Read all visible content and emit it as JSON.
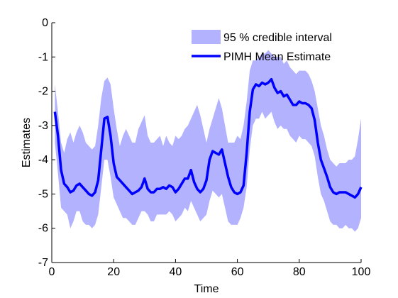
{
  "chart_data": {
    "type": "area",
    "title": "",
    "xlabel": "Time",
    "ylabel": "Estimates",
    "xlim": [
      0,
      100
    ],
    "ylim": [
      -7,
      0
    ],
    "xticks": [
      0,
      20,
      40,
      60,
      80,
      100
    ],
    "yticks": [
      0,
      -1,
      -2,
      -3,
      -4,
      -5,
      -6,
      -7
    ],
    "grid": false,
    "legend_position": "top-right",
    "colors": {
      "band": "#b2b2ff",
      "mean": "#0000ff",
      "axis": "#000000"
    },
    "x": [
      1,
      2,
      3,
      4,
      5,
      6,
      7,
      8,
      9,
      10,
      11,
      12,
      13,
      14,
      15,
      16,
      17,
      18,
      19,
      20,
      21,
      22,
      23,
      24,
      25,
      26,
      27,
      28,
      29,
      30,
      31,
      32,
      33,
      34,
      35,
      36,
      37,
      38,
      39,
      40,
      41,
      42,
      43,
      44,
      45,
      46,
      47,
      48,
      49,
      50,
      51,
      52,
      53,
      54,
      55,
      56,
      57,
      58,
      59,
      60,
      61,
      62,
      63,
      64,
      65,
      66,
      67,
      68,
      69,
      70,
      71,
      72,
      73,
      74,
      75,
      76,
      77,
      78,
      79,
      80,
      81,
      82,
      83,
      84,
      85,
      86,
      87,
      88,
      89,
      90,
      91,
      92,
      93,
      94,
      95,
      96,
      97,
      98,
      99,
      100
    ],
    "series": [
      {
        "name": "PIMH Mean Estimate",
        "kind": "line",
        "values": [
          -2.6,
          -3.3,
          -4.3,
          -4.7,
          -4.8,
          -4.95,
          -4.9,
          -4.75,
          -4.7,
          -4.8,
          -4.9,
          -5.0,
          -5.05,
          -4.95,
          -4.6,
          -3.7,
          -2.8,
          -2.75,
          -3.3,
          -4.1,
          -4.5,
          -4.6,
          -4.7,
          -4.8,
          -4.9,
          -5.0,
          -4.95,
          -4.9,
          -4.8,
          -4.55,
          -4.85,
          -4.95,
          -4.95,
          -4.85,
          -4.85,
          -4.8,
          -4.85,
          -4.75,
          -4.8,
          -4.95,
          -4.85,
          -4.7,
          -4.55,
          -4.55,
          -4.3,
          -4.65,
          -4.85,
          -4.95,
          -4.85,
          -4.6,
          -4.0,
          -3.75,
          -3.8,
          -3.85,
          -3.7,
          -4.1,
          -4.5,
          -4.8,
          -4.95,
          -5.0,
          -4.95,
          -4.75,
          -3.8,
          -2.6,
          -1.95,
          -1.8,
          -1.85,
          -1.75,
          -1.8,
          -1.75,
          -1.65,
          -1.9,
          -2.05,
          -2.0,
          -2.15,
          -2.1,
          -2.25,
          -2.4,
          -2.4,
          -2.3,
          -2.35,
          -2.35,
          -2.4,
          -2.5,
          -2.85,
          -3.5,
          -4.0,
          -4.25,
          -4.5,
          -4.8,
          -4.95,
          -5.0,
          -4.95,
          -4.95,
          -4.95,
          -5.0,
          -5.05,
          -5.1,
          -5.0,
          -4.8
        ]
      },
      {
        "name": "95 % credible interval",
        "kind": "band",
        "upper": [
          -1.8,
          -2.6,
          -3.5,
          -3.8,
          -3.4,
          -3.2,
          -3.5,
          -3.2,
          -3.0,
          -3.2,
          -3.5,
          -3.6,
          -3.7,
          -3.6,
          -3.0,
          -2.2,
          -1.7,
          -1.6,
          -1.8,
          -2.5,
          -3.1,
          -3.6,
          -3.3,
          -3.1,
          -3.3,
          -3.5,
          -3.5,
          -3.1,
          -2.9,
          -2.7,
          -3.3,
          -3.5,
          -3.5,
          -3.4,
          -3.3,
          -3.6,
          -3.3,
          -3.5,
          -3.6,
          -3.3,
          -3.4,
          -3.3,
          -3.1,
          -3.0,
          -2.8,
          -2.6,
          -2.4,
          -2.7,
          -3.1,
          -3.5,
          -3.1,
          -2.8,
          -2.5,
          -2.2,
          -2.5,
          -3.0,
          -3.5,
          -3.5,
          -3.5,
          -3.3,
          -3.4,
          -3.0,
          -2.3,
          -1.4,
          -1.1,
          -1.1,
          -1.0,
          -0.9,
          -0.9,
          -0.8,
          -0.9,
          -1.0,
          -1.0,
          -1.0,
          -1.2,
          -1.1,
          -1.3,
          -1.4,
          -1.5,
          -1.4,
          -1.4,
          -1.4,
          -1.5,
          -1.7,
          -2.0,
          -2.5,
          -3.0,
          -3.3,
          -3.7,
          -4.0,
          -4.1,
          -4.2,
          -4.1,
          -4.1,
          -4.1,
          -4.0,
          -4.0,
          -3.9,
          -3.4,
          -2.8
        ],
        "lower": [
          -3.5,
          -4.4,
          -5.4,
          -5.5,
          -5.6,
          -6.0,
          -5.8,
          -5.5,
          -5.5,
          -5.8,
          -5.9,
          -5.9,
          -6.0,
          -5.9,
          -5.6,
          -4.8,
          -4.0,
          -4.0,
          -4.5,
          -5.1,
          -5.3,
          -5.5,
          -5.7,
          -5.7,
          -5.8,
          -5.9,
          -5.9,
          -5.7,
          -5.5,
          -5.5,
          -5.6,
          -5.8,
          -5.8,
          -5.6,
          -5.6,
          -5.6,
          -5.6,
          -5.5,
          -5.6,
          -5.8,
          -5.7,
          -5.6,
          -5.4,
          -5.5,
          -5.2,
          -5.4,
          -5.6,
          -5.8,
          -5.7,
          -5.6,
          -5.2,
          -4.9,
          -5.0,
          -5.1,
          -5.0,
          -5.4,
          -5.8,
          -5.9,
          -5.9,
          -5.9,
          -5.7,
          -5.4,
          -4.8,
          -3.7,
          -3.0,
          -2.8,
          -2.8,
          -2.6,
          -2.8,
          -2.7,
          -2.6,
          -2.9,
          -3.1,
          -3.0,
          -3.1,
          -3.1,
          -3.3,
          -3.4,
          -3.5,
          -3.3,
          -3.4,
          -3.4,
          -3.5,
          -3.6,
          -3.9,
          -4.5,
          -5.0,
          -5.2,
          -5.5,
          -5.8,
          -5.9,
          -5.9,
          -6.0,
          -6.0,
          -5.9,
          -6.0,
          -6.0,
          -6.1,
          -6.0,
          -5.7
        ]
      }
    ]
  }
}
